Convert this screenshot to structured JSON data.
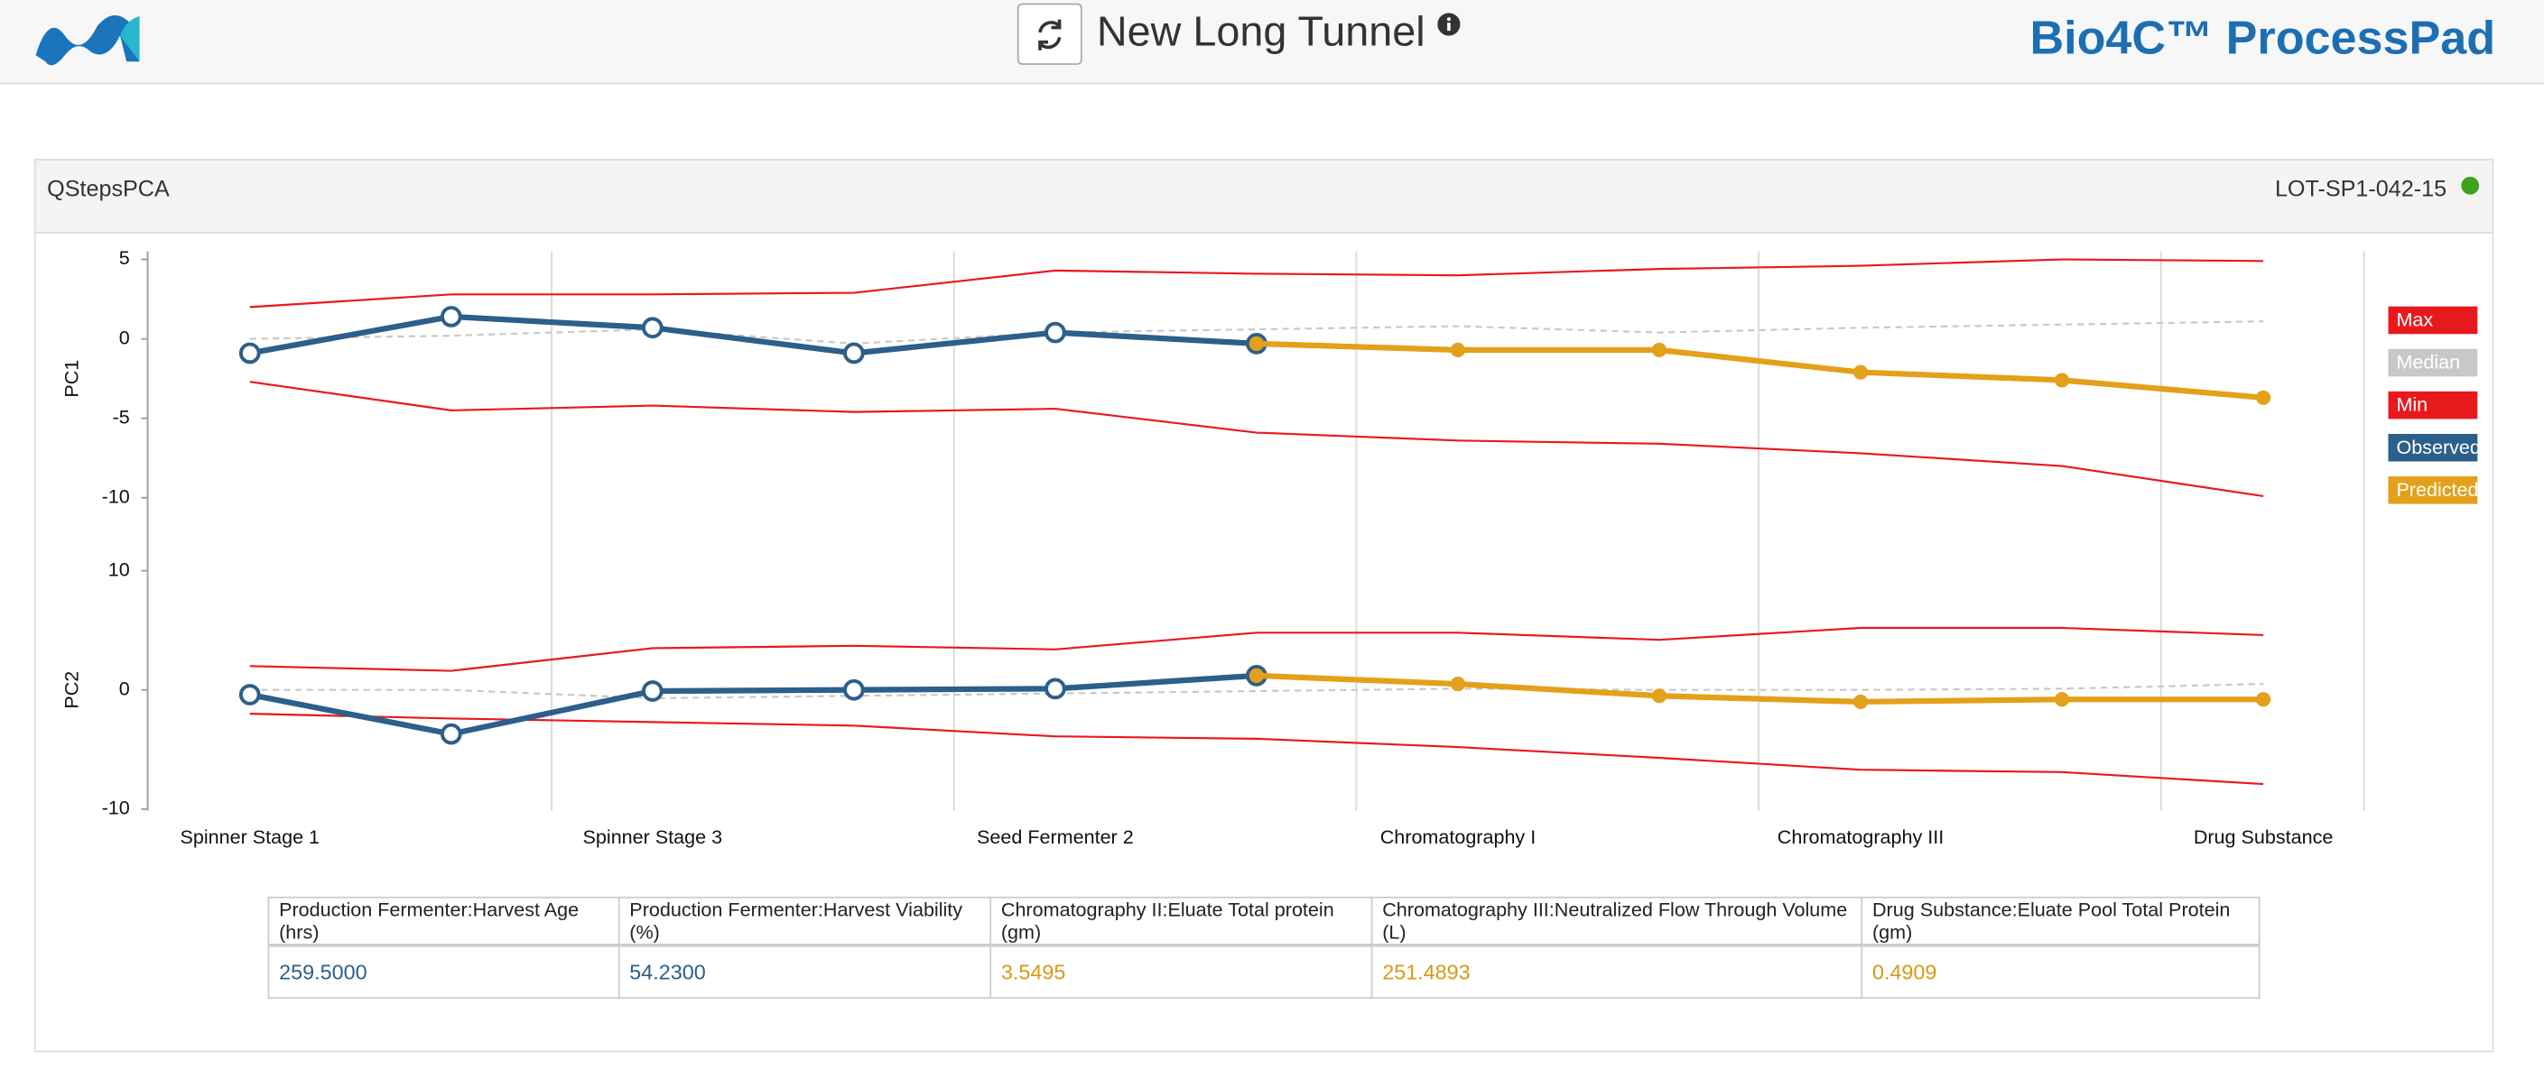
{
  "header": {
    "title": "New Long Tunnel",
    "brand": "Bio4C™ ProcessPad"
  },
  "panel": {
    "title": "QStepsPCA",
    "lot": "LOT-SP1-042-15"
  },
  "chart_data": [
    {
      "type": "line",
      "ylabel": "PC1",
      "ylim": [
        -10,
        5
      ],
      "yticks": [
        -10,
        -5,
        0,
        5
      ],
      "series": [
        {
          "name": "Max",
          "color": "#e8191d",
          "values": [
            2.0,
            2.8,
            2.8,
            2.9,
            4.3,
            4.1,
            4.0,
            4.4,
            4.6,
            5.0,
            4.9
          ]
        },
        {
          "name": "Median",
          "color": "#c8c8c8",
          "dash": true,
          "values": [
            0,
            0.2,
            0.6,
            -0.3,
            0.4,
            0.6,
            0.8,
            0.4,
            0.7,
            0.9,
            1.1
          ]
        },
        {
          "name": "Min",
          "color": "#e8191d",
          "values": [
            -2.7,
            -4.5,
            -4.2,
            -4.6,
            -4.4,
            -5.9,
            -6.4,
            -6.6,
            -7.2,
            -8.0,
            -9.9
          ]
        },
        {
          "name": "Observed",
          "color": "#2c5f8a",
          "marker": "hollow",
          "values": [
            -0.9,
            1.4,
            0.7,
            -0.9,
            0.4,
            -0.3,
            null,
            null,
            null,
            null,
            null
          ]
        },
        {
          "name": "Predicted",
          "color": "#e3a01b",
          "marker": "filled",
          "values": [
            null,
            null,
            null,
            null,
            null,
            -0.3,
            -0.7,
            -0.7,
            -2.1,
            -2.6,
            -3.7
          ]
        }
      ]
    },
    {
      "type": "line",
      "ylabel": "PC2",
      "ylim": [
        -10,
        10
      ],
      "yticks": [
        -10,
        0,
        10
      ],
      "categories": [
        "Spinner Stage 1",
        null,
        "Spinner Stage 3",
        null,
        "Seed Fermenter 2",
        null,
        "Chromatography I",
        null,
        "Chromatography III",
        null,
        "Drug Substance"
      ],
      "series": [
        {
          "color": "#e8191d",
          "values": [
            2.0,
            1.6,
            3.5,
            3.7,
            3.4,
            4.8,
            4.8,
            4.2,
            5.2,
            5.2,
            4.6
          ]
        },
        {
          "color": "#c8c8c8",
          "dash": true,
          "values": [
            0,
            0,
            -0.7,
            -0.5,
            -0.3,
            -0.1,
            0.1,
            0,
            0,
            0.1,
            0.5
          ]
        },
        {
          "color": "#e8191d",
          "values": [
            -2.0,
            -2.4,
            -2.7,
            -3.0,
            -3.9,
            -4.1,
            -4.8,
            -5.7,
            -6.7,
            -6.9,
            -7.9
          ]
        },
        {
          "color": "#2c5f8a",
          "marker": "hollow",
          "values": [
            -0.4,
            -3.7,
            -0.1,
            0,
            0.1,
            1.2,
            null,
            null,
            null,
            null,
            null
          ]
        },
        {
          "color": "#e3a01b",
          "marker": "filled",
          "values": [
            null,
            null,
            null,
            null,
            null,
            1.2,
            0.5,
            -0.5,
            -1.0,
            -0.8,
            -0.8
          ]
        }
      ]
    }
  ],
  "table": {
    "columns": [
      "Production Fermenter:Harvest Age (hrs)",
      "Production Fermenter:Harvest Viability (%)",
      "Chromatography II:Eluate Total protein (gm)",
      "Chromatography III:Neutralized Flow Through Volume (L)",
      "Drug Substance:Eluate Pool Total Protein (gm)"
    ],
    "rows": [
      [
        "259.5000",
        "54.2300",
        "3.5495",
        "251.4893",
        "0.4909"
      ]
    ]
  }
}
